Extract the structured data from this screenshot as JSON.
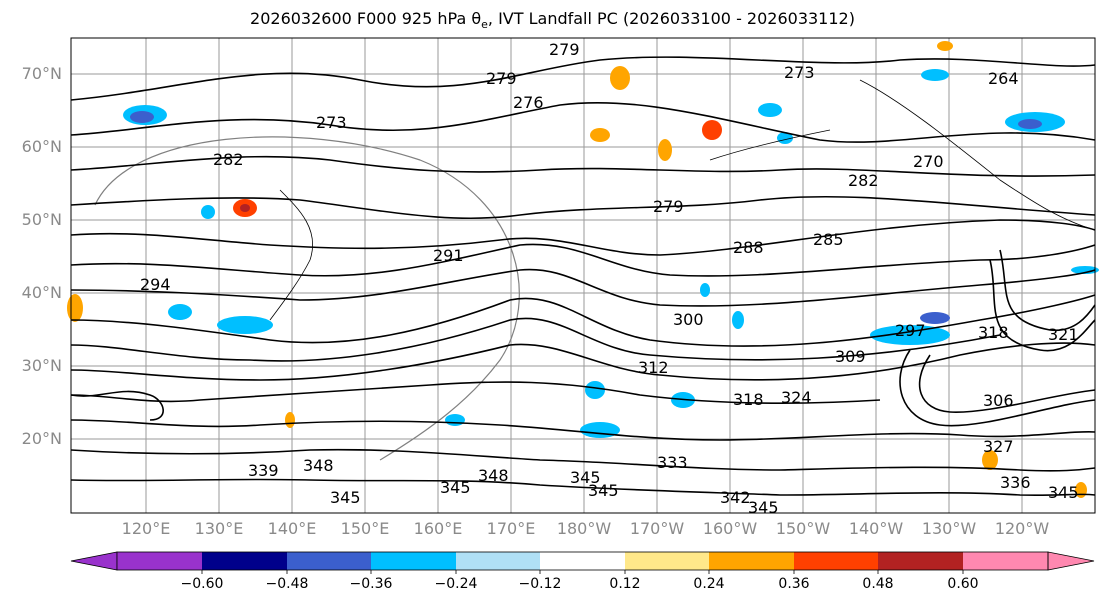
{
  "title": {
    "prefix": "2026032600 F000 925 hPa θ",
    "sub": "e",
    "suffix": ", IVT Landfall PC (2026033100 - 2026033112)"
  },
  "latitudes": [
    "70°N",
    "60°N",
    "50°N",
    "40°N",
    "30°N",
    "20°N"
  ],
  "longitudes": [
    "120°E",
    "130°E",
    "140°E",
    "150°E",
    "160°E",
    "170°E",
    "180°W",
    "170°W",
    "160°W",
    "150°W",
    "140°W",
    "130°W",
    "120°W"
  ],
  "colorbar": {
    "ticks": [
      "−0.60",
      "−0.48",
      "−0.36",
      "−0.24",
      "−0.12",
      "0.12",
      "0.24",
      "0.36",
      "0.48",
      "0.60"
    ],
    "colors": [
      "#9932cc",
      "#00008b",
      "#3b5fcd",
      "#00bfff",
      "#b0e0f6",
      "#ffffff",
      "#ffe88a",
      "#ffa500",
      "#ff4000",
      "#b22222",
      "#ff88b0"
    ]
  },
  "contour_labels": [
    {
      "text": "279"
    },
    {
      "text": "273"
    },
    {
      "text": "264"
    },
    {
      "text": "279"
    },
    {
      "text": "276"
    },
    {
      "text": "273"
    },
    {
      "text": "282"
    },
    {
      "text": "270"
    },
    {
      "text": "282"
    },
    {
      "text": "291"
    },
    {
      "text": "288"
    },
    {
      "text": "285"
    },
    {
      "text": "294"
    },
    {
      "text": "300"
    },
    {
      "text": "297"
    },
    {
      "text": "318"
    },
    {
      "text": "309"
    },
    {
      "text": "312"
    },
    {
      "text": "318"
    },
    {
      "text": "324"
    },
    {
      "text": "321"
    },
    {
      "text": "306"
    },
    {
      "text": "327"
    },
    {
      "text": "333"
    },
    {
      "text": "342"
    },
    {
      "text": "345"
    },
    {
      "text": "348"
    },
    {
      "text": "345"
    },
    {
      "text": "339"
    },
    {
      "text": "345"
    },
    {
      "text": "345"
    },
    {
      "text": "348"
    },
    {
      "text": "345"
    },
    {
      "text": "336"
    },
    {
      "text": "345"
    },
    {
      "text": "279"
    }
  ],
  "colors": {
    "contour": "#000000",
    "grid": "#9a9a9a",
    "coast": "#000000"
  }
}
